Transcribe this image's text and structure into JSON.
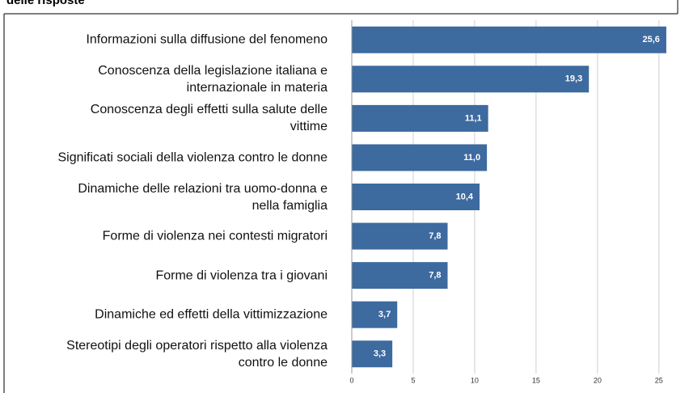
{
  "chart_data": {
    "type": "barh",
    "title": "delle risposte",
    "categories": [
      "Informazioni sulla diffusione del fenomeno",
      "Conoscenza della legislazione italiana e\ninternazionale in materia",
      "Conoscenza degli effetti sulla salute delle\nvittime",
      "Significati sociali della violenza contro le donne",
      "Dinamiche delle relazioni tra uomo-donna e\nnella famiglia",
      "Forme di violenza nei contesti migratori",
      "Forme di violenza tra i giovani",
      "Dinamiche ed effetti della vittimizzazione",
      "Stereotipi degli operatori rispetto alla violenza\ncontro le donne"
    ],
    "values": [
      25.6,
      19.3,
      11.1,
      11.0,
      10.4,
      7.8,
      7.8,
      3.7,
      3.3
    ],
    "value_labels": [
      "25,6",
      "19,3",
      "11,1",
      "11,0",
      "10,4",
      "7,8",
      "7,8",
      "3,7",
      "3,3"
    ],
    "color": "#3d6a9f",
    "xlim": [
      0,
      26
    ],
    "xticks": [
      0,
      5,
      10,
      15,
      20,
      25
    ],
    "grid": true
  }
}
